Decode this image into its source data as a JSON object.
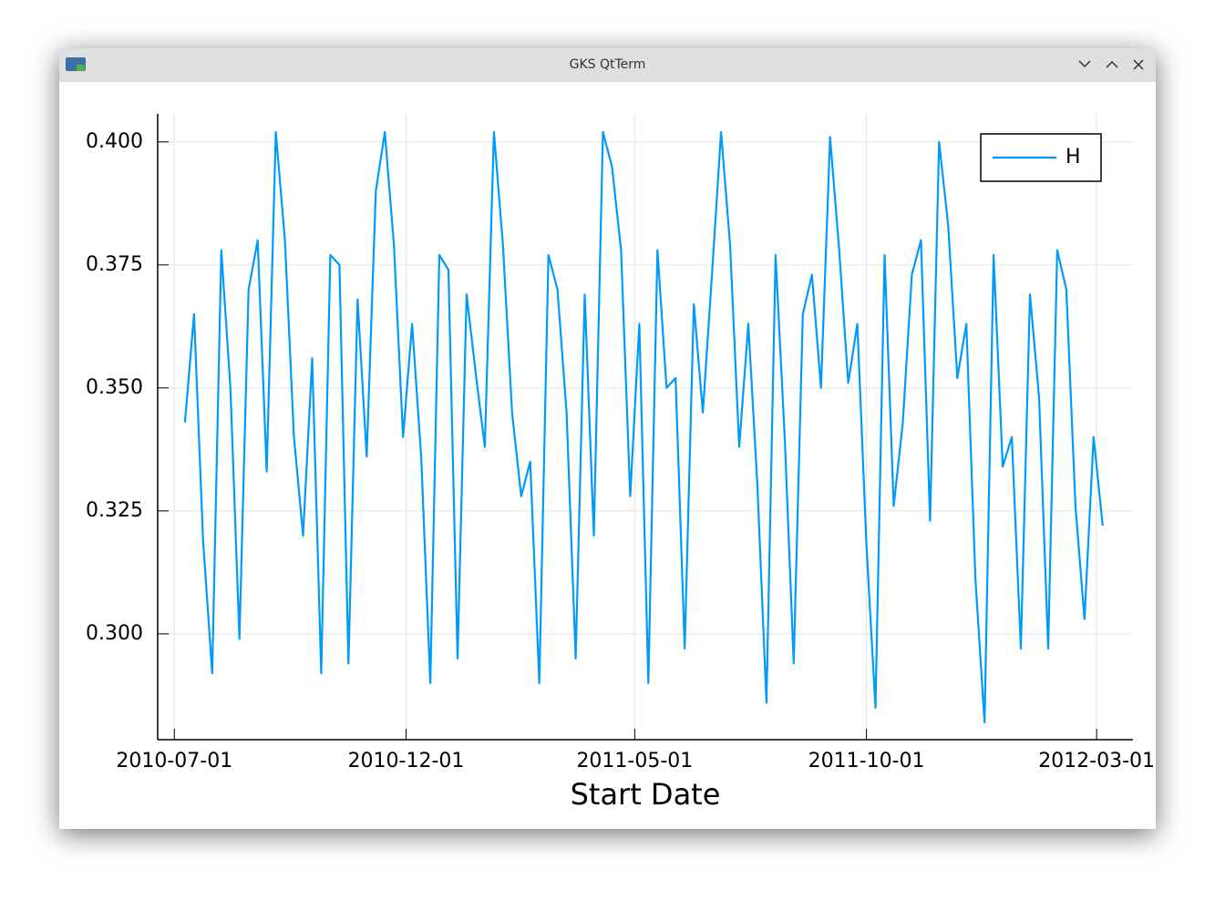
{
  "window": {
    "title": "GKS QtTerm"
  },
  "chart_data": {
    "type": "line",
    "xlabel": "Start Date",
    "x": [
      "2010-07-08",
      "2010-07-14",
      "2010-07-20",
      "2010-07-26",
      "2010-08-01",
      "2010-08-07",
      "2010-08-13",
      "2010-08-19",
      "2010-08-25",
      "2010-08-31",
      "2010-09-06",
      "2010-09-12",
      "2010-09-18",
      "2010-09-24",
      "2010-09-30",
      "2010-10-06",
      "2010-10-12",
      "2010-10-18",
      "2010-10-24",
      "2010-10-30",
      "2010-11-05",
      "2010-11-11",
      "2010-11-17",
      "2010-11-23",
      "2010-11-29",
      "2010-12-05",
      "2010-12-11",
      "2010-12-17",
      "2010-12-23",
      "2010-12-29",
      "2011-01-04",
      "2011-01-10",
      "2011-01-16",
      "2011-01-22",
      "2011-01-28",
      "2011-02-03",
      "2011-02-09",
      "2011-02-15",
      "2011-02-21",
      "2011-02-27",
      "2011-03-05",
      "2011-03-11",
      "2011-03-17",
      "2011-03-23",
      "2011-03-29",
      "2011-04-04",
      "2011-04-10",
      "2011-04-16",
      "2011-04-22",
      "2011-04-28",
      "2011-05-04",
      "2011-05-10",
      "2011-05-16",
      "2011-05-22",
      "2011-05-28",
      "2011-06-03",
      "2011-06-09",
      "2011-06-15",
      "2011-06-21",
      "2011-06-27",
      "2011-07-03",
      "2011-07-09",
      "2011-07-15",
      "2011-07-21",
      "2011-07-27",
      "2011-08-02",
      "2011-08-08",
      "2011-08-14",
      "2011-08-20",
      "2011-08-26",
      "2011-09-01",
      "2011-09-07",
      "2011-09-13",
      "2011-09-19",
      "2011-09-25",
      "2011-10-01",
      "2011-10-07",
      "2011-10-13",
      "2011-10-19",
      "2011-10-25",
      "2011-10-31",
      "2011-11-06",
      "2011-11-12",
      "2011-11-18",
      "2011-11-24",
      "2011-11-30",
      "2011-12-06",
      "2011-12-12",
      "2011-12-18",
      "2011-12-24",
      "2011-12-30",
      "2012-01-05",
      "2012-01-11",
      "2012-01-17",
      "2012-01-23",
      "2012-01-29",
      "2012-02-04",
      "2012-02-10",
      "2012-02-16",
      "2012-02-22",
      "2012-02-28",
      "2012-03-05"
    ],
    "series": [
      {
        "name": "H",
        "color": "#009af9",
        "values": [
          0.343,
          0.365,
          0.319,
          0.292,
          0.378,
          0.35,
          0.299,
          0.37,
          0.38,
          0.333,
          0.402,
          0.38,
          0.34,
          0.32,
          0.356,
          0.292,
          0.377,
          0.375,
          0.294,
          0.368,
          0.336,
          0.39,
          0.402,
          0.379,
          0.34,
          0.363,
          0.336,
          0.29,
          0.377,
          0.374,
          0.295,
          0.369,
          0.353,
          0.338,
          0.402,
          0.379,
          0.345,
          0.328,
          0.335,
          0.29,
          0.377,
          0.37,
          0.345,
          0.295,
          0.369,
          0.32,
          0.402,
          0.395,
          0.378,
          0.328,
          0.363,
          0.29,
          0.378,
          0.35,
          0.352,
          0.297,
          0.367,
          0.345,
          0.373,
          0.402,
          0.379,
          0.338,
          0.363,
          0.33,
          0.286,
          0.377,
          0.34,
          0.294,
          0.365,
          0.373,
          0.35,
          0.401,
          0.378,
          0.351,
          0.363,
          0.318,
          0.285,
          0.377,
          0.326,
          0.343,
          0.373,
          0.38,
          0.323,
          0.4,
          0.383,
          0.352,
          0.363,
          0.311,
          0.282,
          0.377,
          0.334,
          0.34,
          0.297,
          0.369,
          0.348,
          0.297,
          0.378,
          0.37,
          0.326,
          0.303,
          0.34,
          0.322
        ]
      }
    ],
    "xlim": [
      "2010-06-20",
      "2012-03-25"
    ],
    "xticks": [
      "2010-07-01",
      "2010-12-01",
      "2011-05-01",
      "2011-10-01",
      "2012-03-01"
    ],
    "ylim": [
      0.2785,
      0.4057
    ],
    "yticks": [
      {
        "value": 0.3,
        "label": "0.300"
      },
      {
        "value": 0.325,
        "label": "0.325"
      },
      {
        "value": 0.35,
        "label": "0.350"
      },
      {
        "value": 0.375,
        "label": "0.375"
      },
      {
        "value": 0.4,
        "label": "0.400"
      }
    ],
    "grid": true,
    "legend": "top-right"
  }
}
